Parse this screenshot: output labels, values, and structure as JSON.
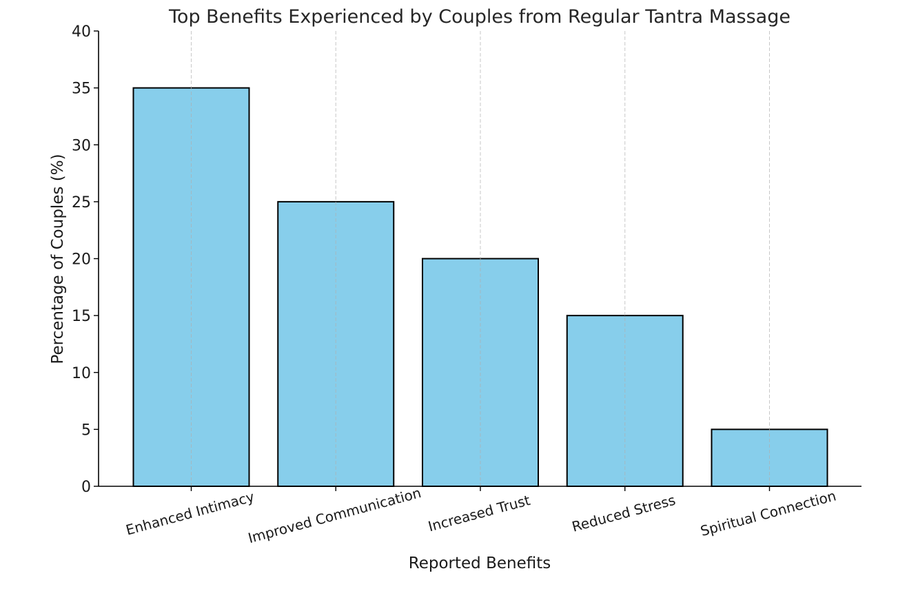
{
  "chart_data": {
    "type": "bar",
    "title": "Top Benefits Experienced by Couples from Regular Tantra Massage",
    "xlabel": "Reported Benefits",
    "ylabel": "Percentage of Couples (%)",
    "categories": [
      "Enhanced Intimacy",
      "Improved Communication",
      "Increased Trust",
      "Reduced Stress",
      "Spiritual Connection"
    ],
    "values": [
      35,
      25,
      20,
      15,
      5
    ],
    "ylim": [
      0,
      40
    ],
    "yticks": [
      0,
      5,
      10,
      15,
      20,
      25,
      30,
      35,
      40
    ],
    "xtick_rotation_deg": 15,
    "grid": "vertical dashed lines at categories",
    "bar_color": "#87CEEB",
    "bar_edge_color": "#000000"
  }
}
